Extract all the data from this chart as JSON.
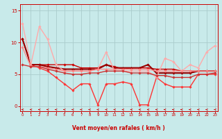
{
  "bg_color": "#c8eaea",
  "grid_color": "#aacccc",
  "xlabel": "Vent moyen/en rafales ( km/h )",
  "xlabel_color": "#cc0000",
  "tick_color": "#cc0000",
  "axis_color": "#cc0000",
  "yticks": [
    0,
    5,
    10,
    15
  ],
  "xticks": [
    0,
    1,
    2,
    3,
    4,
    5,
    6,
    7,
    8,
    9,
    10,
    11,
    12,
    13,
    14,
    15,
    16,
    17,
    18,
    19,
    20,
    21,
    22,
    23
  ],
  "xlim": [
    -0.3,
    23.3
  ],
  "ylim": [
    -0.8,
    16.0
  ],
  "series": [
    {
      "x": [
        0,
        1,
        2,
        3,
        4,
        5,
        6,
        7,
        8,
        9,
        10,
        11,
        12,
        13,
        14,
        15,
        16,
        17,
        18,
        19,
        20,
        21,
        22,
        23
      ],
      "y": [
        10.5,
        6.5,
        6.5,
        6.5,
        6.5,
        6.5,
        6.5,
        6.0,
        6.0,
        6.0,
        6.5,
        6.2,
        5.8,
        6.0,
        6.0,
        6.0,
        5.8,
        5.8,
        5.8,
        5.5,
        5.5,
        5.5,
        5.5,
        5.5
      ],
      "color": "#cc0000",
      "lw": 1.0,
      "marker": "D",
      "ms": 1.8
    },
    {
      "x": [
        0,
        1,
        2,
        3,
        4,
        5,
        6,
        7,
        8,
        9,
        10,
        11,
        12,
        13,
        14,
        15,
        16,
        17,
        18,
        19,
        20,
        21,
        22,
        23
      ],
      "y": [
        10.5,
        6.5,
        6.0,
        5.5,
        4.5,
        3.5,
        2.5,
        3.5,
        3.5,
        0.2,
        3.5,
        3.5,
        3.8,
        3.5,
        0.2,
        0.2,
        4.5,
        3.5,
        3.0,
        3.0,
        3.0,
        5.0,
        5.0,
        5.0
      ],
      "color": "#ff3333",
      "lw": 1.0,
      "marker": "D",
      "ms": 1.8
    },
    {
      "x": [
        0,
        1,
        2,
        3,
        4,
        5,
        6,
        7,
        8,
        9,
        10,
        11,
        12,
        13,
        14,
        15,
        16,
        17,
        18,
        19,
        20,
        21,
        22,
        23
      ],
      "y": [
        10.5,
        6.5,
        6.5,
        6.2,
        6.0,
        5.8,
        5.8,
        5.8,
        5.8,
        5.8,
        6.5,
        6.0,
        6.0,
        6.0,
        6.0,
        6.5,
        5.2,
        5.2,
        5.2,
        5.2,
        5.2,
        5.5,
        5.5,
        5.5
      ],
      "color": "#990000",
      "lw": 1.5,
      "marker": "D",
      "ms": 1.8
    },
    {
      "x": [
        0,
        1,
        2,
        3,
        4,
        5,
        6,
        7,
        8,
        9,
        10,
        11,
        12,
        13,
        14,
        15,
        16,
        17,
        18,
        19,
        20,
        21,
        22,
        23
      ],
      "y": [
        13.0,
        6.5,
        12.5,
        10.5,
        6.5,
        5.5,
        5.5,
        5.5,
        5.5,
        5.8,
        8.5,
        5.5,
        5.5,
        5.5,
        5.5,
        5.5,
        4.5,
        7.5,
        7.0,
        5.5,
        6.5,
        6.0,
        8.5,
        9.5
      ],
      "color": "#ffaaaa",
      "lw": 1.0,
      "marker": "D",
      "ms": 1.8
    },
    {
      "x": [
        0,
        1,
        2,
        3,
        4,
        5,
        6,
        7,
        8,
        9,
        10,
        11,
        12,
        13,
        14,
        15,
        16,
        17,
        18,
        19,
        20,
        21,
        22,
        23
      ],
      "y": [
        9.2,
        6.2,
        6.2,
        6.0,
        5.8,
        5.5,
        5.5,
        5.5,
        5.5,
        5.8,
        5.8,
        5.8,
        5.8,
        5.8,
        5.8,
        5.8,
        5.5,
        5.5,
        5.5,
        5.5,
        5.5,
        5.5,
        5.5,
        5.5
      ],
      "color": "#ff8888",
      "lw": 1.0,
      "marker": "D",
      "ms": 1.8
    },
    {
      "x": [
        0,
        1,
        2,
        3,
        4,
        5,
        6,
        7,
        8,
        9,
        10,
        11,
        12,
        13,
        14,
        15,
        16,
        17,
        18,
        19,
        20,
        21,
        22,
        23
      ],
      "y": [
        6.5,
        6.2,
        6.2,
        5.8,
        5.5,
        5.2,
        5.0,
        5.0,
        5.2,
        5.2,
        5.5,
        5.5,
        5.5,
        5.2,
        5.2,
        5.2,
        4.8,
        4.8,
        4.5,
        4.5,
        4.5,
        5.0,
        5.0,
        5.2
      ],
      "color": "#cc3333",
      "lw": 1.0,
      "marker": "D",
      "ms": 1.8
    }
  ]
}
